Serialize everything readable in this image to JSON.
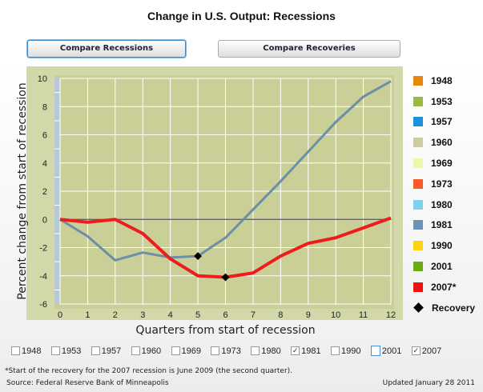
{
  "title": "Change in U.S. Output: Recessions",
  "buttons": {
    "recessions": "Compare Recessions",
    "recoveries": "Compare Recoveries"
  },
  "chart_data": {
    "type": "line",
    "xlabel": "Quarters from start of recession",
    "ylabel": "Percent change from start of recession",
    "xlim": [
      0,
      12
    ],
    "ylim": [
      -6,
      10
    ],
    "x_ticks": [
      0,
      1,
      2,
      3,
      4,
      5,
      6,
      7,
      8,
      9,
      10,
      11,
      12
    ],
    "y_ticks": [
      -6,
      -4,
      -2,
      0,
      2,
      4,
      6,
      8,
      10
    ],
    "y_tick_labels": [
      "-6",
      "-4",
      "-2",
      "0",
      "2",
      "4",
      "6",
      "8",
      "10"
    ],
    "series": [
      {
        "name": "1981",
        "color": "#6b8fa8",
        "values": [
          0,
          -1.2,
          -2.9,
          -2.35,
          -2.7,
          -2.6,
          -1.3,
          0.7,
          2.7,
          4.8,
          6.9,
          8.7,
          9.8
        ],
        "recovery_index": 5
      },
      {
        "name": "2007",
        "color": "#ee1c1c",
        "values": [
          0,
          -0.2,
          0,
          -1,
          -2.8,
          -4,
          -4.1,
          -3.8,
          -2.6,
          -1.7,
          -1.3,
          -0.6,
          0.1
        ],
        "recovery_index": 6
      }
    ]
  },
  "legend": [
    {
      "label": "1948",
      "color": "#e8860c"
    },
    {
      "label": "1953",
      "color": "#9cb84a"
    },
    {
      "label": "1957",
      "color": "#1e90dc"
    },
    {
      "label": "1960",
      "color": "#cccca0"
    },
    {
      "label": "1969",
      "color": "#eef7a8"
    },
    {
      "label": "1973",
      "color": "#f75b2a"
    },
    {
      "label": "1980",
      "color": "#7fd0ea"
    },
    {
      "label": "1981",
      "color": "#6b93b5"
    },
    {
      "label": "1990",
      "color": "#fdd20e"
    },
    {
      "label": "2001",
      "color": "#6aab14"
    },
    {
      "label": "2007*",
      "color": "#ee1111"
    }
  ],
  "legend_recovery": "Recovery",
  "checkboxes": [
    {
      "label": "1948",
      "checked": false
    },
    {
      "label": "1953",
      "checked": false
    },
    {
      "label": "1957",
      "checked": false
    },
    {
      "label": "1960",
      "checked": false
    },
    {
      "label": "1969",
      "checked": false
    },
    {
      "label": "1973",
      "checked": false
    },
    {
      "label": "1980",
      "checked": false
    },
    {
      "label": "1981",
      "checked": true
    },
    {
      "label": "1990",
      "checked": false
    },
    {
      "label": "2001",
      "checked": false
    },
    {
      "label": "2007",
      "checked": true
    }
  ],
  "footnote": "*Start of the recovery for the 2007 recession is June 2009 (the second quarter).",
  "source": "Source: Federal Reserve Bank of Minneapolis",
  "updated": "Updated January 28 2011"
}
